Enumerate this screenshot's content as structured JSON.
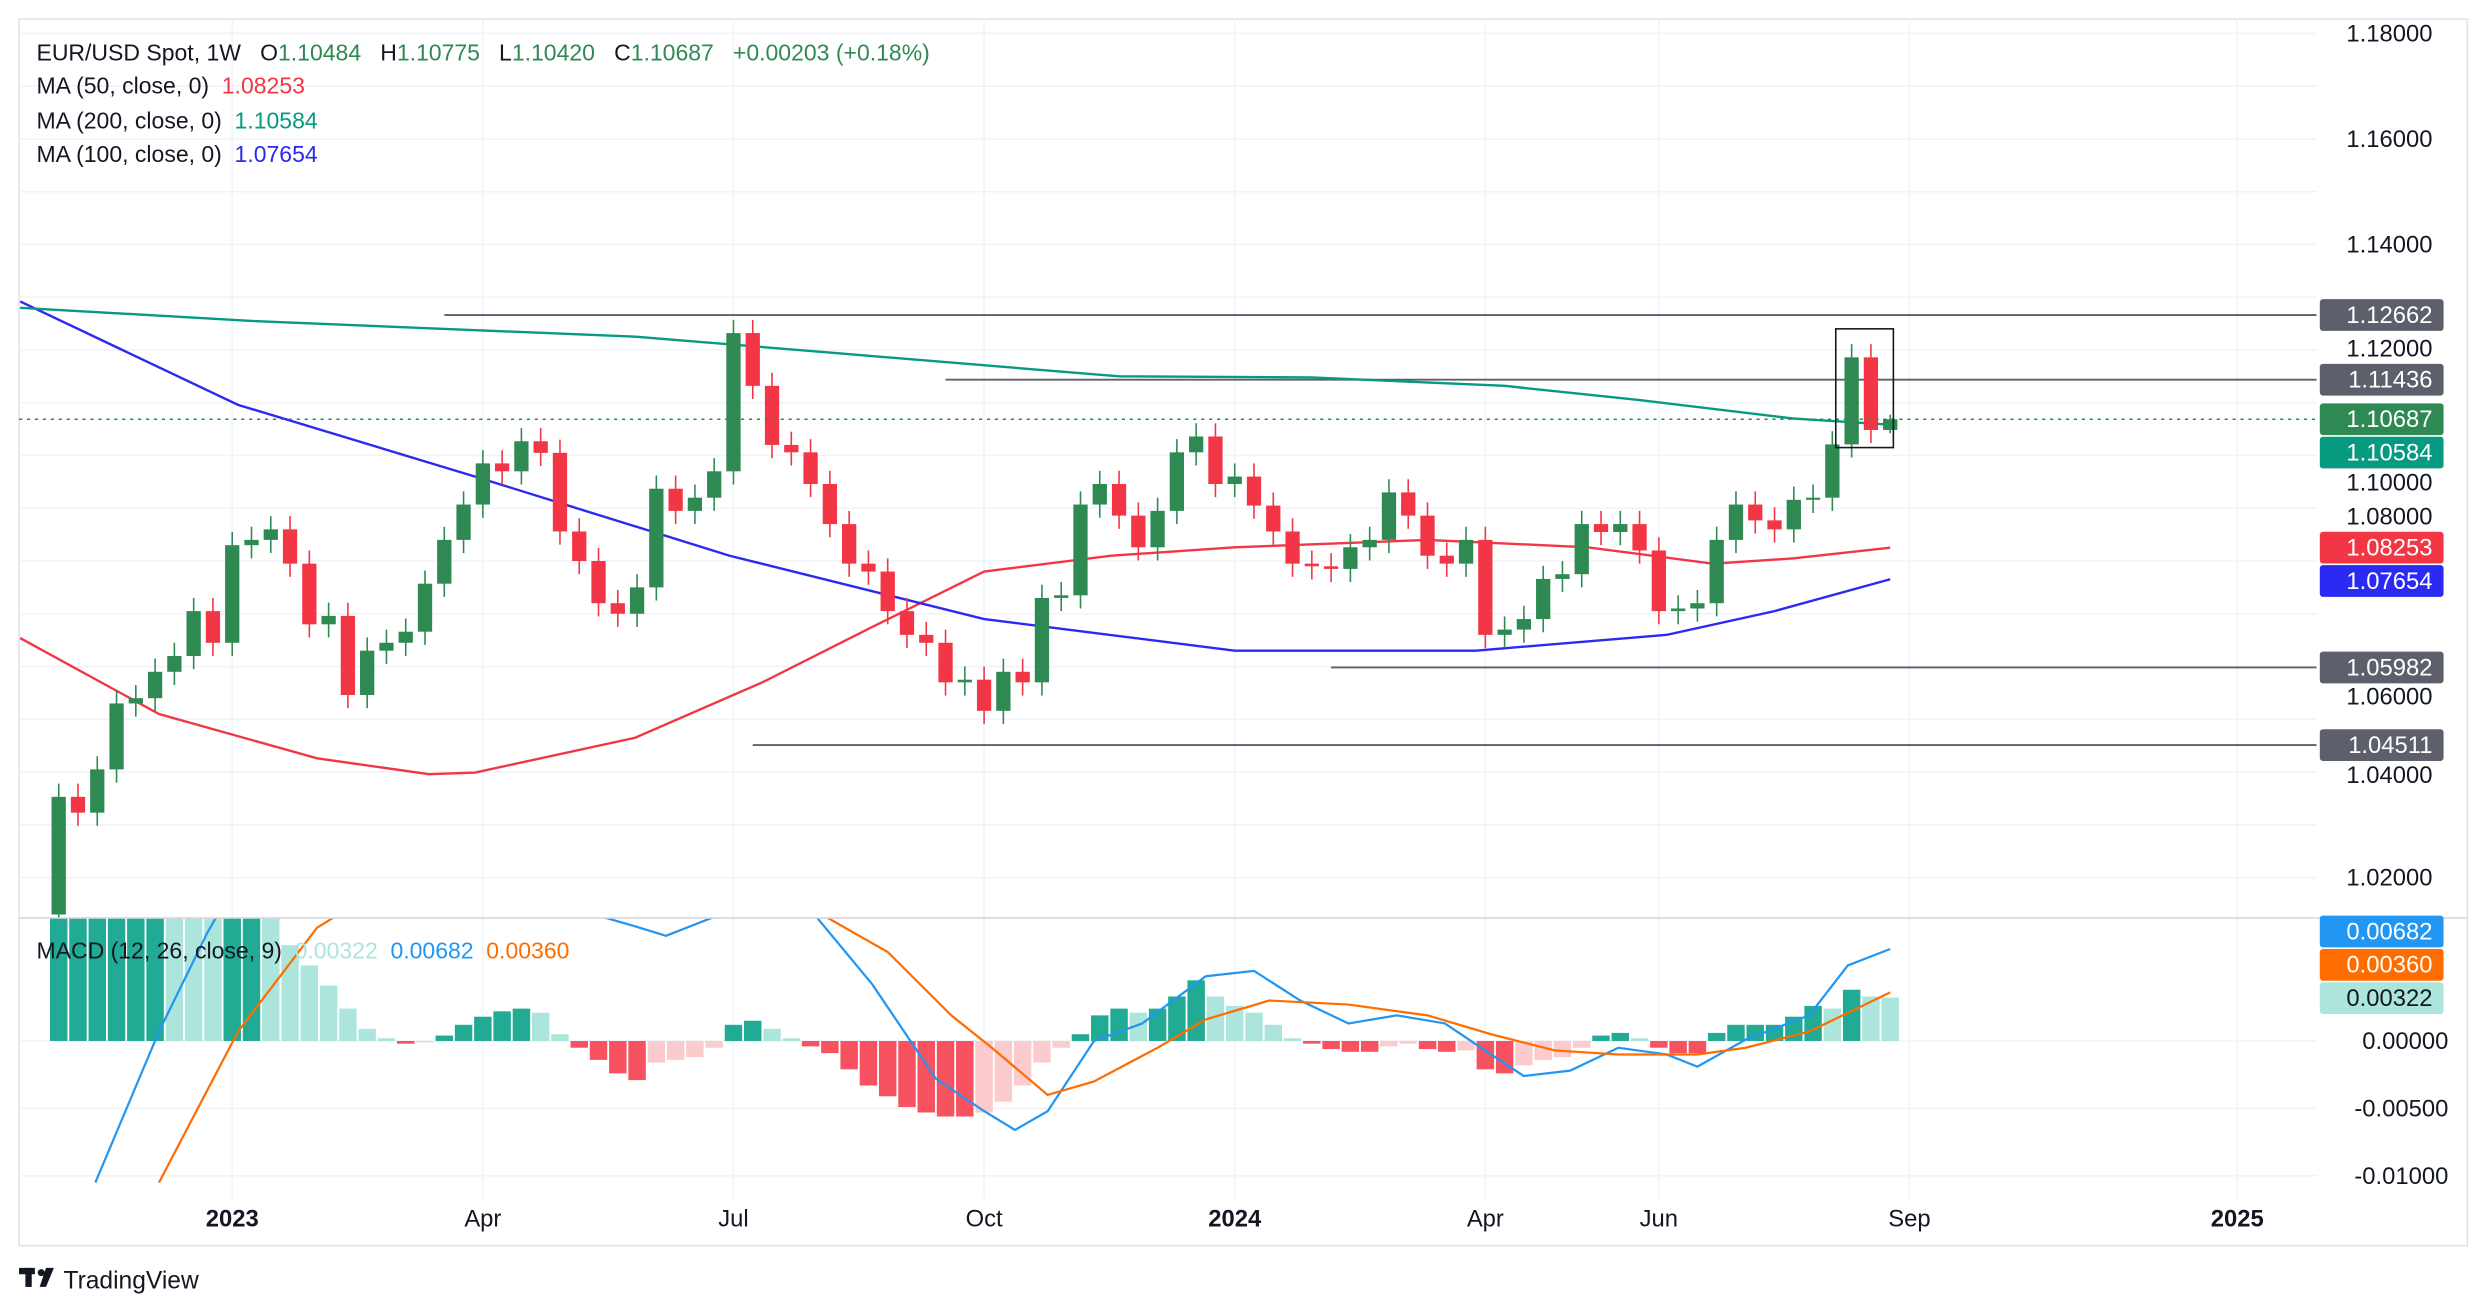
{
  "legend": {
    "symbol": "EUR/USD Spot, 1W",
    "o_label": "O",
    "o": "1.10484",
    "h_label": "H",
    "h": "1.10775",
    "l_label": "L",
    "l": "1.10420",
    "c_label": "C",
    "c": "1.10687",
    "change": "+0.00203 (+0.18%)",
    "ma50_label": "MA (50, close, 0)",
    "ma50": "1.08253",
    "ma200_label": "MA (200, close, 0)",
    "ma200": "1.10584",
    "ma100_label": "MA (100, close, 0)",
    "ma100": "1.07654",
    "macd_label": "MACD (12, 26, close, 9)",
    "macd_hist": "0.00322",
    "macd_line": "0.00682",
    "macd_signal": "0.00360"
  },
  "colors": {
    "up": "#26a69a",
    "candle_up": "#2e8a52",
    "candle_down": "#f23645",
    "ma50": "#f23645",
    "ma200": "#089981",
    "ma100": "#2a2af2",
    "macd": "#2196f3",
    "signal": "#ff6d00",
    "hist_up_strong": "#22ab94",
    "hist_up_weak": "#ace5dc",
    "hist_dn_strong": "#f7525f",
    "hist_dn_weak": "#fccbcd",
    "level": "#5d606b",
    "text": "#131722"
  },
  "brand": "TradingView",
  "chart_data": {
    "type": "candlestick",
    "title": "EUR/USD Spot, 1W",
    "x_unit": "week index",
    "price_axis": {
      "range": [
        1.02,
        1.18
      ],
      "ticks": [
        "1.18000",
        "1.16000",
        "1.14000",
        "1.12000",
        "1.10000",
        "1.08000",
        "1.06000",
        "1.04000",
        "1.02000"
      ]
    },
    "macd_axis": {
      "ticks": [
        "0.00000",
        "-0.00500",
        "-0.01000"
      ]
    },
    "time_ticks": [
      {
        "label": "2023",
        "week": 9,
        "bold": true
      },
      {
        "label": "Apr",
        "week": 22
      },
      {
        "label": "Jul",
        "week": 35
      },
      {
        "label": "Oct",
        "week": 48
      },
      {
        "label": "2024",
        "week": 61,
        "bold": true
      },
      {
        "label": "Apr",
        "week": 74
      },
      {
        "label": "Jun",
        "week": 83
      },
      {
        "label": "Sep",
        "week": 96
      },
      {
        "label": "2025",
        "week": 113,
        "bold": true
      }
    ],
    "first_open": 1.013,
    "closes": [
      1.0353,
      1.0323,
      1.0405,
      1.053,
      1.054,
      1.059,
      1.062,
      1.0705,
      1.0645,
      1.083,
      1.084,
      1.086,
      1.0795,
      1.068,
      1.0696,
      1.0546,
      1.063,
      1.0645,
      1.0666,
      1.0757,
      1.084,
      1.0907,
      1.0985,
      1.097,
      1.1027,
      1.1005,
      1.0856,
      1.08,
      1.072,
      1.07,
      1.075,
      1.0937,
      1.0895,
      1.092,
      1.097,
      1.1232,
      1.1132,
      1.102,
      1.1006,
      1.0946,
      1.087,
      1.0795,
      1.078,
      1.0705,
      1.066,
      1.0645,
      1.057,
      1.0575,
      1.0516,
      1.059,
      1.057,
      1.073,
      1.0735,
      1.0907,
      1.0946,
      1.0886,
      1.0826,
      1.0895,
      1.1006,
      1.1036,
      1.0946,
      1.096,
      1.0905,
      1.0856,
      1.0795,
      1.079,
      1.0785,
      1.0826,
      1.084,
      1.093,
      1.0886,
      1.081,
      1.0795,
      1.084,
      1.066,
      1.067,
      1.069,
      1.0766,
      1.0775,
      1.087,
      1.0855,
      1.087,
      1.082,
      1.0705,
      1.071,
      1.072,
      1.084,
      1.0907,
      1.0877,
      1.086,
      1.0916,
      1.092,
      1.1021,
      1.1186,
      1.10484,
      1.10687
    ],
    "last_bar": {
      "open": 1.10484,
      "high": 1.10775,
      "low": 1.1042,
      "close": 1.10687
    },
    "ma200": [
      [
        -2,
        1.128
      ],
      [
        10,
        1.1255
      ],
      [
        30,
        1.1225
      ],
      [
        40,
        1.1195
      ],
      [
        55,
        1.115
      ],
      [
        65,
        1.1148
      ],
      [
        75,
        1.1132
      ],
      [
        82,
        1.1105
      ],
      [
        90,
        1.107
      ],
      [
        95,
        1.10584
      ]
    ],
    "ma100": [
      [
        -2,
        1.1292
      ],
      [
        9.3,
        1.1096
      ],
      [
        21.6,
        1.096
      ],
      [
        34.8,
        1.081
      ],
      [
        48,
        1.069
      ],
      [
        61,
        1.063
      ],
      [
        73.5,
        1.063
      ],
      [
        83.4,
        1.066
      ],
      [
        89,
        1.0705
      ],
      [
        95,
        1.07654
      ]
    ],
    "ma50": [
      [
        -2,
        1.0654
      ],
      [
        5.2,
        1.051
      ],
      [
        13.4,
        1.0426
      ],
      [
        19.2,
        1.0396
      ],
      [
        21.6,
        1.0399
      ],
      [
        29.9,
        1.0465
      ],
      [
        36.5,
        1.057
      ],
      [
        42.2,
        1.0675
      ],
      [
        48,
        1.078
      ],
      [
        54.6,
        1.081
      ],
      [
        61,
        1.0826
      ],
      [
        71,
        1.084
      ],
      [
        79.3,
        1.0826
      ],
      [
        85.8,
        1.0795
      ],
      [
        90,
        1.0805
      ],
      [
        95,
        1.08253
      ]
    ],
    "levels": [
      {
        "value": "1.12662",
        "from_week": 20
      },
      {
        "value": "1.11436",
        "from_week": 46
      },
      {
        "value": "1.05982",
        "from_week": 66
      },
      {
        "value": "1.04511",
        "from_week": 36
      }
    ],
    "highlight_box": {
      "from_week": 93,
      "to_week": 95,
      "high": 1.1234,
      "low": 1.1021
    },
    "macd_hist": [
      0.0092,
      0.0105,
      0.0115,
      0.0125,
      0.0132,
      0.0138,
      0.0135,
      0.013,
      0.0126,
      0.0128,
      0.0132,
      0.011,
      0.0071,
      0.0056,
      0.0041,
      0.0024,
      0.0009,
      0.0002,
      -0.0002,
      -0.0001,
      0.0004,
      0.0012,
      0.0018,
      0.0022,
      0.0024,
      0.0021,
      0.0005,
      -0.0005,
      -0.0014,
      -0.0024,
      -0.0029,
      -0.0016,
      -0.0014,
      -0.0012,
      -0.0005,
      0.0012,
      0.0015,
      0.0009,
      0.0002,
      -0.0004,
      -0.0009,
      -0.0021,
      -0.0033,
      -0.0041,
      -0.0049,
      -0.0053,
      -0.0056,
      -0.0056,
      -0.0053,
      -0.0045,
      -0.0033,
      -0.0016,
      -0.0005,
      0.0005,
      0.0019,
      0.0024,
      0.0021,
      0.0024,
      0.0033,
      0.0045,
      0.0033,
      0.0026,
      0.0021,
      0.0012,
      0.0002,
      -0.0002,
      -0.0006,
      -0.0008,
      -0.0008,
      -0.0004,
      -0.0002,
      -0.0006,
      -0.0008,
      -0.0007,
      -0.0021,
      -0.0024,
      -0.0018,
      -0.0014,
      -0.0012,
      -0.0005,
      0.0004,
      0.0006,
      0.0002,
      -0.0005,
      -0.0009,
      -0.0009,
      0.0006,
      0.0012,
      0.0012,
      0.0012,
      0.0018,
      0.0026,
      0.0024,
      0.0038,
      0.0033,
      0.00322
    ],
    "macd_line": [
      [
        1.9,
        -0.0105
      ],
      [
        5.2,
        0.0007
      ],
      [
        7.7,
        0.008
      ],
      [
        10.1,
        0.014
      ],
      [
        13.4,
        0.018
      ],
      [
        28.2,
        0.0092
      ],
      [
        29.9,
        0.0085
      ],
      [
        31.5,
        0.0078
      ],
      [
        34,
        0.0092
      ],
      [
        35.6,
        0.013
      ],
      [
        39.3,
        0.0092
      ],
      [
        42.2,
        0.0042
      ],
      [
        45.5,
        -0.0028
      ],
      [
        48,
        -0.0052
      ],
      [
        49.6,
        -0.0066
      ],
      [
        51.3,
        -0.0052
      ],
      [
        53.7,
        0
      ],
      [
        56.2,
        0.0013
      ],
      [
        59.5,
        0.0048
      ],
      [
        62,
        0.0052
      ],
      [
        64.4,
        0.003
      ],
      [
        66.9,
        0.0013
      ],
      [
        69.4,
        0.0019
      ],
      [
        71.9,
        0.0013
      ],
      [
        74.3,
        -0.001
      ],
      [
        76,
        -0.0026
      ],
      [
        78.4,
        -0.0022
      ],
      [
        80.9,
        -0.0005
      ],
      [
        83.4,
        -0.001
      ],
      [
        85,
        -0.0019
      ],
      [
        87.5,
        0.0001
      ],
      [
        90.8,
        0.0019
      ],
      [
        92.8,
        0.0056
      ],
      [
        95,
        0.00682
      ]
    ],
    "signal_line": [
      [
        5.2,
        -0.0105
      ],
      [
        9.3,
        0.0007
      ],
      [
        13.4,
        0.0084
      ],
      [
        17.5,
        0.012
      ],
      [
        38.1,
        0.011
      ],
      [
        39.8,
        0.0092
      ],
      [
        43,
        0.0066
      ],
      [
        46.3,
        0.0019
      ],
      [
        48.4,
        -0.0005
      ],
      [
        51.3,
        -0.004
      ],
      [
        53.7,
        -0.003
      ],
      [
        57,
        -0.0005
      ],
      [
        59.5,
        0.0016
      ],
      [
        62.8,
        0.003
      ],
      [
        66.9,
        0.0027
      ],
      [
        71,
        0.0019
      ],
      [
        74.3,
        0.0005
      ],
      [
        77.6,
        -0.0007
      ],
      [
        80.9,
        -0.001
      ],
      [
        85,
        -0.001
      ],
      [
        87.5,
        -0.0005
      ],
      [
        90.8,
        0.0007
      ],
      [
        95,
        0.0036
      ]
    ]
  }
}
